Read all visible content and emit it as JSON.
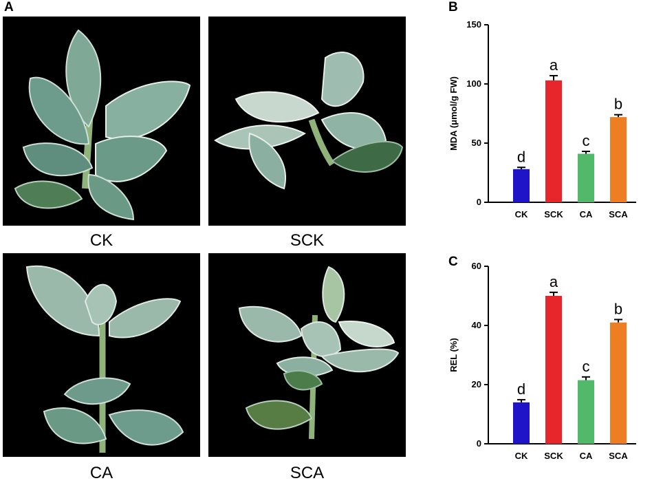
{
  "panels": {
    "a": "A",
    "b": "B",
    "c": "C"
  },
  "photos": [
    {
      "caption": "CK"
    },
    {
      "caption": "SCK"
    },
    {
      "caption": "CA"
    },
    {
      "caption": "SCA"
    }
  ],
  "chart_data": [
    {
      "type": "bar",
      "categories": [
        "CK",
        "SCK",
        "CA",
        "SCA"
      ],
      "values": [
        28,
        103,
        41,
        72
      ],
      "errors": [
        1.5,
        4,
        2,
        2
      ],
      "significance": [
        "d",
        "a",
        "c",
        "b"
      ],
      "colors": [
        "#1f14c8",
        "#e6262b",
        "#52b96a",
        "#ee7e22"
      ],
      "ylabel": "MDA (μmol/g FW)",
      "ylim": [
        0,
        150
      ],
      "yticks": [
        0,
        50,
        100,
        150
      ],
      "grid": false
    },
    {
      "type": "bar",
      "categories": [
        "CK",
        "SCK",
        "CA",
        "SCA"
      ],
      "values": [
        14,
        50,
        21.5,
        41
      ],
      "errors": [
        0.9,
        1.2,
        1.1,
        1.0
      ],
      "significance": [
        "d",
        "a",
        "c",
        "b"
      ],
      "colors": [
        "#1f14c8",
        "#e6262b",
        "#52b96a",
        "#ee7e22"
      ],
      "ylabel": "REL (%)",
      "ylim": [
        0,
        60
      ],
      "yticks": [
        0,
        20,
        40,
        60
      ],
      "grid": false
    }
  ]
}
